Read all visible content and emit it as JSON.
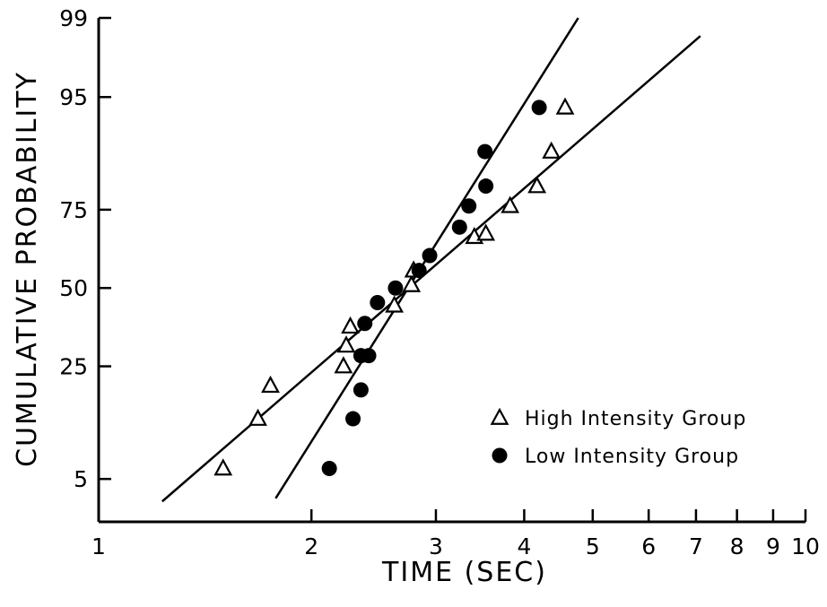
{
  "chart_data": {
    "type": "scatter",
    "title": "",
    "xlabel": "TIME (SEC)",
    "ylabel": "CUMULATIVE  PROBABILITY",
    "x_scale": "log",
    "y_scale": "probability",
    "xlim": [
      1,
      10
    ],
    "ylim": [
      2.2,
      99
    ],
    "grid": false,
    "legend_position": "bottom-right",
    "x_ticks": [
      {
        "value": 1,
        "label": "1"
      },
      {
        "value": 2,
        "label": "2"
      },
      {
        "value": 3,
        "label": "3"
      },
      {
        "value": 4,
        "label": "4"
      },
      {
        "value": 5,
        "label": "5"
      },
      {
        "value": 6,
        "label": "6"
      },
      {
        "value": 7,
        "label": "7"
      },
      {
        "value": 8,
        "label": "8"
      },
      {
        "value": 9,
        "label": "9"
      },
      {
        "value": 10,
        "label": "10"
      }
    ],
    "y_ticks": [
      {
        "value": 5,
        "label": "5"
      },
      {
        "value": 25,
        "label": "25"
      },
      {
        "value": 50,
        "label": "50"
      },
      {
        "value": 75,
        "label": "75"
      },
      {
        "value": 95,
        "label": "95"
      },
      {
        "value": 99,
        "label": "99"
      }
    ],
    "series": [
      {
        "name": "High Intensity Group",
        "marker": "open-triangle",
        "color": "#000000",
        "points": [
          {
            "x": 1.5,
            "y": 6
          },
          {
            "x": 1.68,
            "y": 13
          },
          {
            "x": 1.75,
            "y": 20
          },
          {
            "x": 2.22,
            "y": 25
          },
          {
            "x": 2.24,
            "y": 31
          },
          {
            "x": 2.27,
            "y": 37
          },
          {
            "x": 2.62,
            "y": 44
          },
          {
            "x": 2.77,
            "y": 51
          },
          {
            "x": 2.79,
            "y": 56
          },
          {
            "x": 3.4,
            "y": 67
          },
          {
            "x": 3.53,
            "y": 68
          },
          {
            "x": 3.82,
            "y": 76
          },
          {
            "x": 4.17,
            "y": 81
          },
          {
            "x": 4.37,
            "y": 88
          },
          {
            "x": 4.57,
            "y": 94
          }
        ],
        "fit_line": {
          "x": [
            1.23,
            7.1
          ],
          "y": [
            3.3,
            98.5
          ]
        }
      },
      {
        "name": "Low Intensity Group",
        "marker": "filled-circle",
        "color": "#000000",
        "points": [
          {
            "x": 2.12,
            "y": 6
          },
          {
            "x": 2.29,
            "y": 13
          },
          {
            "x": 2.35,
            "y": 19
          },
          {
            "x": 2.35,
            "y": 28
          },
          {
            "x": 2.41,
            "y": 28
          },
          {
            "x": 2.38,
            "y": 38
          },
          {
            "x": 2.48,
            "y": 45
          },
          {
            "x": 2.63,
            "y": 50
          },
          {
            "x": 2.84,
            "y": 56
          },
          {
            "x": 2.94,
            "y": 61
          },
          {
            "x": 3.24,
            "y": 70
          },
          {
            "x": 3.34,
            "y": 76
          },
          {
            "x": 3.53,
            "y": 81
          },
          {
            "x": 3.52,
            "y": 88
          },
          {
            "x": 4.2,
            "y": 94
          }
        ],
        "fit_line": {
          "x": [
            1.78,
            4.77
          ],
          "y": [
            3.5,
            99
          ]
        }
      }
    ]
  }
}
